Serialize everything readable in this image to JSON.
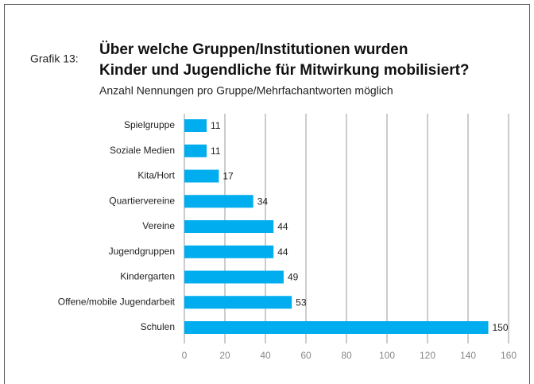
{
  "chart_data": {
    "type": "bar",
    "orientation": "horizontal",
    "label": "Grafik 13:",
    "title": [
      "Über welche Gruppen/Institutionen wurden",
      "Kinder und Jugendliche für Mitwirkung mobilisiert?"
    ],
    "subtitle": "Anzahl Nennungen pro Gruppe/Mehrfachantworten möglich",
    "categories": [
      "Spielgruppe",
      "Soziale Medien",
      "Kita/Hort",
      "Quartiervereine",
      "Vereine",
      "Jugendgruppen",
      "Kindergarten",
      "Offene/mobile Jugendarbeit",
      "Schulen"
    ],
    "values": [
      11,
      11,
      17,
      34,
      44,
      44,
      49,
      53,
      150
    ],
    "color": "#00adef",
    "xlim": [
      0,
      160
    ],
    "xticks": [
      0,
      20,
      40,
      60,
      80,
      100,
      120,
      140,
      160
    ],
    "grid": true
  }
}
